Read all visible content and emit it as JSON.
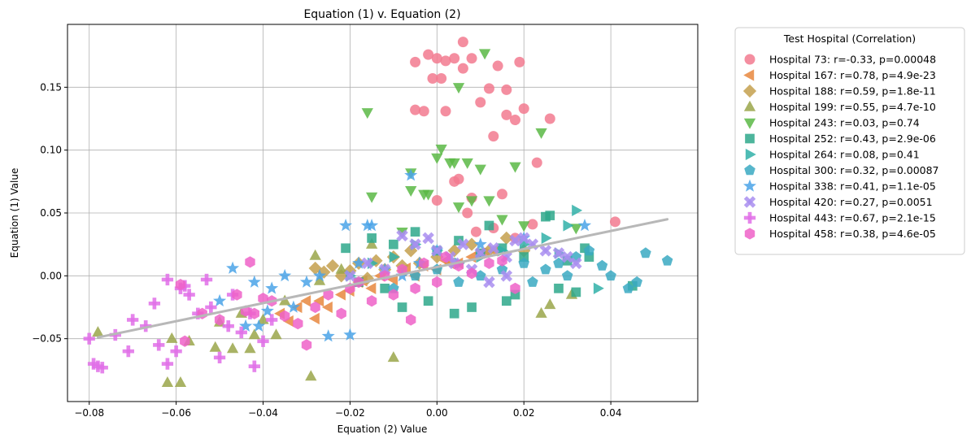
{
  "chart_data": {
    "type": "scatter",
    "title": "Equation (1) v. Equation (2)",
    "xlabel": "Equation (2) Value",
    "ylabel": "Equation (1) Value",
    "xlim": [
      -0.085,
      0.06
    ],
    "ylim": [
      -0.1,
      0.2
    ],
    "x_ticks": [
      -0.08,
      -0.06,
      -0.04,
      -0.02,
      0.0,
      0.02,
      0.04
    ],
    "x_tick_labels": [
      "−0.08",
      "−0.06",
      "−0.04",
      "−0.02",
      "0.00",
      "0.02",
      "0.04"
    ],
    "y_ticks": [
      -0.05,
      0.0,
      0.05,
      0.1,
      0.15
    ],
    "y_tick_labels": [
      "−0.05",
      "0.00",
      "0.05",
      "0.10",
      "0.15"
    ],
    "grid": true,
    "legend_title": "Test Hospital (Correlation)",
    "legend_placement": "outside-right",
    "trend_line": {
      "x": [
        -0.078,
        0.053
      ],
      "y": [
        -0.049,
        0.045
      ],
      "color": "#b8b8b8"
    },
    "series": [
      {
        "name": "Hospital 73: r=-0.33, p=0.00048",
        "color": "#f27a8f",
        "marker": "circle",
        "x": [
          0.006,
          -0.002,
          0.0,
          0.004,
          0.008,
          -0.005,
          0.002,
          0.006,
          0.014,
          0.019,
          -0.001,
          0.001,
          0.012,
          0.016,
          0.01,
          -0.003,
          0.002,
          0.02,
          0.013,
          0.016,
          0.018,
          0.026,
          -0.005,
          0.005,
          0.023,
          0.004,
          0.008,
          0.015,
          0.0,
          0.007,
          0.022,
          0.041,
          0.013,
          0.009,
          0.018,
          0.011
        ],
        "y": [
          0.186,
          0.176,
          0.173,
          0.173,
          0.173,
          0.17,
          0.171,
          0.165,
          0.167,
          0.17,
          0.157,
          0.157,
          0.149,
          0.148,
          0.138,
          0.131,
          0.131,
          0.133,
          0.111,
          0.128,
          0.124,
          0.125,
          0.132,
          0.077,
          0.09,
          0.075,
          0.062,
          0.065,
          0.06,
          0.05,
          0.041,
          0.043,
          0.038,
          0.035,
          0.03,
          0.018
        ]
      },
      {
        "name": "Hospital 167: r=0.78, p=4.9e-23",
        "color": "#e8873e",
        "marker": "triangle-left",
        "x": [
          -0.036,
          -0.034,
          -0.03,
          -0.028,
          -0.025,
          -0.022,
          -0.02,
          -0.018,
          -0.015,
          -0.013,
          -0.01,
          -0.008,
          -0.005,
          -0.003,
          0.0,
          0.002,
          0.005,
          0.008,
          0.01,
          0.013,
          -0.032,
          -0.027,
          -0.017,
          -0.007,
          0.003
        ],
        "y": [
          -0.03,
          -0.036,
          -0.02,
          -0.034,
          -0.025,
          -0.015,
          -0.012,
          -0.005,
          -0.01,
          0.0,
          -0.003,
          0.004,
          0.0,
          0.008,
          0.005,
          0.012,
          0.01,
          0.015,
          0.018,
          0.02,
          -0.025,
          -0.02,
          -0.004,
          0.006,
          0.01
        ]
      },
      {
        "name": "Hospital 188: r=0.59, p=1.8e-11",
        "color": "#c4a04d",
        "marker": "diamond",
        "x": [
          -0.028,
          -0.026,
          -0.024,
          -0.022,
          -0.02,
          -0.018,
          -0.016,
          -0.014,
          -0.012,
          -0.01,
          -0.008,
          -0.006,
          -0.004,
          0.0,
          0.004,
          0.008,
          0.012,
          0.016,
          0.02
        ],
        "y": [
          0.006,
          0.003,
          0.008,
          0.0,
          0.004,
          0.01,
          -0.002,
          0.012,
          0.005,
          0.015,
          0.008,
          0.02,
          0.01,
          0.015,
          0.02,
          0.025,
          0.02,
          0.03,
          0.02
        ]
      },
      {
        "name": "Hospital 199: r=0.55, p=4.7e-10",
        "color": "#9aa64a",
        "marker": "triangle-up",
        "x": [
          -0.078,
          -0.062,
          -0.061,
          -0.059,
          -0.057,
          -0.051,
          -0.05,
          -0.047,
          -0.045,
          -0.043,
          -0.042,
          -0.04,
          -0.037,
          -0.035,
          -0.029,
          -0.028,
          -0.022,
          -0.01,
          0.024,
          0.026,
          0.031,
          -0.027,
          -0.015
        ],
        "y": [
          -0.045,
          -0.085,
          -0.05,
          -0.085,
          -0.052,
          -0.057,
          -0.037,
          -0.058,
          -0.03,
          -0.058,
          -0.047,
          -0.035,
          -0.047,
          -0.02,
          -0.08,
          0.016,
          0.005,
          -0.065,
          -0.03,
          -0.023,
          -0.015,
          -0.004,
          0.025
        ]
      },
      {
        "name": "Hospital 243: r=0.03, p=0.74",
        "color": "#5bb845",
        "marker": "triangle-down",
        "x": [
          0.011,
          0.005,
          -0.016,
          0.024,
          -0.015,
          0.018,
          0.001,
          0.003,
          0.004,
          -0.006,
          0.007,
          0.01,
          -0.006,
          -0.003,
          -0.002,
          0.012,
          0.005,
          0.015,
          0.02,
          0.032,
          0.0,
          -0.008,
          0.008
        ],
        "y": [
          0.177,
          0.15,
          0.13,
          0.114,
          0.063,
          0.087,
          0.101,
          0.09,
          0.09,
          0.082,
          0.09,
          0.085,
          0.068,
          0.065,
          0.065,
          0.06,
          0.055,
          0.045,
          0.04,
          0.038,
          0.094,
          0.035,
          0.06
        ]
      },
      {
        "name": "Hospital 252: r=0.43, p=2.9e-06",
        "color": "#2ea88b",
        "marker": "square",
        "x": [
          -0.021,
          -0.015,
          -0.01,
          -0.005,
          0.0,
          0.005,
          0.01,
          0.015,
          0.02,
          0.025,
          0.026,
          0.03,
          0.032,
          0.034,
          0.035,
          0.045,
          -0.018,
          -0.012,
          -0.002,
          0.008,
          0.018,
          0.028,
          0.012,
          0.004,
          -0.008,
          0.016
        ],
        "y": [
          0.022,
          0.03,
          0.025,
          0.035,
          0.02,
          0.028,
          0.018,
          0.022,
          0.015,
          0.047,
          0.048,
          0.012,
          -0.013,
          0.022,
          0.015,
          -0.008,
          -0.005,
          -0.01,
          -0.02,
          -0.025,
          -0.015,
          -0.01,
          0.04,
          -0.03,
          -0.025,
          -0.02
        ]
      },
      {
        "name": "Hospital 264: r=0.08, p=0.41",
        "color": "#30b0a8",
        "marker": "triangle-right",
        "x": [
          0.032,
          0.03,
          0.025,
          0.02,
          0.015,
          0.01,
          0.005,
          0.0,
          -0.005,
          -0.01,
          -0.015,
          -0.02,
          0.028,
          0.037
        ],
        "y": [
          0.052,
          0.04,
          0.03,
          0.025,
          0.02,
          0.015,
          0.01,
          0.02,
          0.025,
          0.015,
          0.01,
          0.0,
          0.018,
          -0.01
        ]
      },
      {
        "name": "Hospital 300: r=0.32, p=0.00087",
        "color": "#3aa9c2",
        "marker": "pentagon",
        "x": [
          0.053,
          0.048,
          0.046,
          0.044,
          0.04,
          0.038,
          0.035,
          0.032,
          0.03,
          0.028,
          0.025,
          0.022,
          0.02,
          0.015,
          0.01,
          0.005,
          0.0,
          -0.005,
          -0.01
        ],
        "y": [
          0.012,
          0.018,
          -0.005,
          -0.01,
          0.0,
          0.008,
          0.02,
          0.015,
          0.0,
          0.01,
          0.005,
          -0.005,
          0.01,
          0.005,
          0.0,
          -0.005,
          0.005,
          0.0,
          -0.01
        ]
      },
      {
        "name": "Hospital 338: r=0.41, p=1.1e-05",
        "color": "#4aa3e8",
        "marker": "star",
        "x": [
          -0.05,
          -0.047,
          -0.044,
          -0.042,
          -0.041,
          -0.039,
          -0.035,
          -0.033,
          -0.025,
          -0.021,
          -0.02,
          -0.016,
          -0.015,
          -0.006,
          -0.004,
          0.0,
          0.01,
          0.02,
          0.034,
          -0.03,
          -0.027,
          -0.018,
          -0.012,
          -0.008,
          -0.038
        ],
        "y": [
          -0.02,
          0.006,
          -0.04,
          -0.005,
          -0.04,
          -0.028,
          0.0,
          -0.025,
          -0.048,
          0.04,
          -0.047,
          0.04,
          0.04,
          0.08,
          0.01,
          0.02,
          0.025,
          0.03,
          0.04,
          -0.005,
          0.0,
          0.01,
          0.005,
          0.0,
          -0.01
        ]
      },
      {
        "name": "Hospital 420: r=0.27, p=0.0051",
        "color": "#a98ef0",
        "marker": "x",
        "x": [
          -0.008,
          -0.005,
          -0.002,
          0.0,
          0.003,
          0.006,
          0.01,
          0.013,
          0.016,
          0.018,
          0.02,
          0.022,
          0.025,
          0.028,
          0.03,
          0.032,
          -0.012,
          -0.016,
          -0.02,
          0.008,
          0.012,
          0.016,
          0.004
        ],
        "y": [
          0.032,
          0.025,
          0.03,
          0.02,
          0.015,
          0.025,
          0.018,
          0.022,
          0.015,
          0.028,
          0.03,
          0.025,
          0.02,
          0.018,
          0.015,
          0.01,
          0.005,
          0.01,
          0.0,
          0.005,
          -0.005,
          0.0,
          0.01
        ]
      },
      {
        "name": "Hospital 443: r=0.67, p=2.1e-15",
        "color": "#e070e8",
        "marker": "plus",
        "x": [
          -0.08,
          -0.079,
          -0.078,
          -0.077,
          -0.074,
          -0.071,
          -0.07,
          -0.067,
          -0.065,
          -0.064,
          -0.062,
          -0.062,
          -0.06,
          -0.059,
          -0.058,
          -0.057,
          -0.055,
          -0.053,
          -0.052,
          -0.05,
          -0.048,
          -0.047,
          -0.045,
          -0.043,
          -0.042,
          -0.04,
          -0.038
        ],
        "y": [
          -0.05,
          -0.07,
          -0.072,
          -0.073,
          -0.047,
          -0.06,
          -0.035,
          -0.04,
          -0.022,
          -0.055,
          -0.07,
          -0.003,
          -0.06,
          -0.01,
          -0.008,
          -0.015,
          -0.03,
          -0.003,
          -0.025,
          -0.065,
          -0.04,
          -0.015,
          -0.045,
          -0.03,
          -0.072,
          -0.052,
          -0.035
        ]
      },
      {
        "name": "Hospital 458: r=0.38, p=4.6e-05",
        "color": "#ef62c8",
        "marker": "hexagon",
        "x": [
          -0.058,
          -0.059,
          -0.054,
          -0.05,
          -0.046,
          -0.044,
          -0.043,
          -0.042,
          -0.04,
          -0.035,
          -0.03,
          -0.028,
          -0.025,
          -0.02,
          -0.018,
          -0.015,
          -0.012,
          -0.01,
          -0.008,
          -0.005,
          -0.003,
          0.0,
          0.002,
          0.005,
          0.008,
          0.012,
          0.015,
          -0.022,
          -0.032,
          -0.038,
          -0.006,
          0.018
        ],
        "y": [
          -0.052,
          -0.007,
          -0.03,
          -0.035,
          -0.015,
          -0.028,
          0.011,
          -0.03,
          -0.018,
          -0.032,
          -0.055,
          -0.025,
          -0.015,
          -0.01,
          -0.005,
          -0.02,
          0.0,
          -0.015,
          0.005,
          -0.01,
          0.01,
          -0.005,
          0.015,
          0.008,
          0.002,
          0.01,
          0.012,
          -0.03,
          -0.038,
          -0.02,
          -0.035,
          -0.01
        ]
      }
    ]
  }
}
